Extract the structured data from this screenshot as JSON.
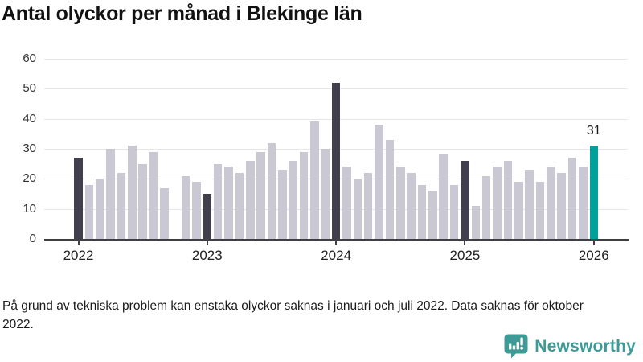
{
  "title": "Antal olyckor per månad i Blekinge län",
  "footnote": "På grund av tekniska problem kan enstaka olyckor saknas i januari och juli 2022. Data saknas för oktober 2022.",
  "logo": {
    "icon": "newsworthy-speech-bubble-chart-icon",
    "text": "Newsworthy"
  },
  "colors": {
    "bar_default": "#c9c8d3",
    "bar_january": "#413e4e",
    "bar_latest": "#00a19a",
    "gridline": "#e6e6e9",
    "axis": "#3e3e45",
    "logo_teal": "#3d9b97"
  },
  "chart_data": {
    "type": "bar",
    "title": "Antal olyckor per månad i Blekinge län",
    "xlabel": "",
    "ylabel": "",
    "ylim": [
      0,
      60
    ],
    "yticks": [
      0,
      10,
      20,
      30,
      40,
      50,
      60
    ],
    "grid": true,
    "legend": false,
    "months": [
      "2022-01",
      "2022-02",
      "2022-03",
      "2022-04",
      "2022-05",
      "2022-06",
      "2022-07",
      "2022-08",
      "2022-09",
      "2022-10",
      "2022-11",
      "2022-12",
      "2023-01",
      "2023-02",
      "2023-03",
      "2023-04",
      "2023-05",
      "2023-06",
      "2023-07",
      "2023-08",
      "2023-09",
      "2023-10",
      "2023-11",
      "2023-12",
      "2024-01",
      "2024-02",
      "2024-03",
      "2024-04",
      "2024-05",
      "2024-06",
      "2024-07",
      "2024-08",
      "2024-09",
      "2024-10",
      "2024-11",
      "2024-12",
      "2025-01",
      "2025-02",
      "2025-03",
      "2025-04",
      "2025-05",
      "2025-06",
      "2025-07",
      "2025-08",
      "2025-09",
      "2025-10",
      "2025-11",
      "2025-12",
      "2026-01"
    ],
    "values": [
      27,
      18,
      20,
      30,
      22,
      31,
      25,
      29,
      17,
      null,
      21,
      19,
      15,
      25,
      24,
      22,
      26,
      29,
      32,
      23,
      26,
      29,
      39,
      30,
      52,
      24,
      20,
      22,
      38,
      33,
      24,
      22,
      18,
      16,
      28,
      18,
      26,
      11,
      21,
      24,
      26,
      19,
      23,
      19,
      24,
      22,
      27,
      24,
      31
    ],
    "missing_months": [
      "2022-10"
    ],
    "xtick_labels": [
      "2022",
      "2023",
      "2024",
      "2025",
      "2026"
    ],
    "xtick_month_indices": [
      0,
      12,
      24,
      36,
      48
    ],
    "latest_value_label": "31"
  }
}
